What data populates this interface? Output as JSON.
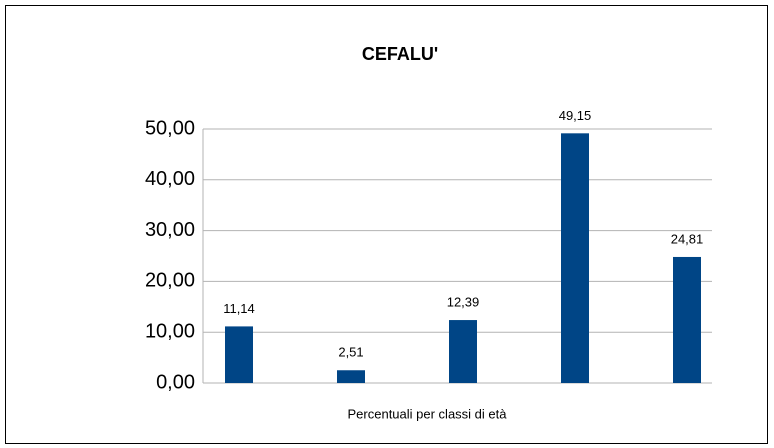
{
  "chart_data": {
    "type": "bar",
    "title": "CEFALU'",
    "x_label": "Percentuali per classi di età",
    "categories": [
      null,
      null,
      null,
      null,
      null
    ],
    "values": [
      11.14,
      2.51,
      12.39,
      49.15,
      24.81
    ],
    "value_labels": [
      "11,14",
      "2,51",
      "12,39",
      "49,15",
      "24,81"
    ],
    "color": "#004586",
    "ylim": [
      0,
      50
    ],
    "yticks": [
      {
        "value": 0,
        "label": "0,00"
      },
      {
        "value": 10,
        "label": "10,00"
      },
      {
        "value": 20,
        "label": "20,00"
      },
      {
        "value": 30,
        "label": "30,00"
      },
      {
        "value": 40,
        "label": "40,00"
      },
      {
        "value": 50,
        "label": "50,00"
      }
    ],
    "grid": true
  }
}
